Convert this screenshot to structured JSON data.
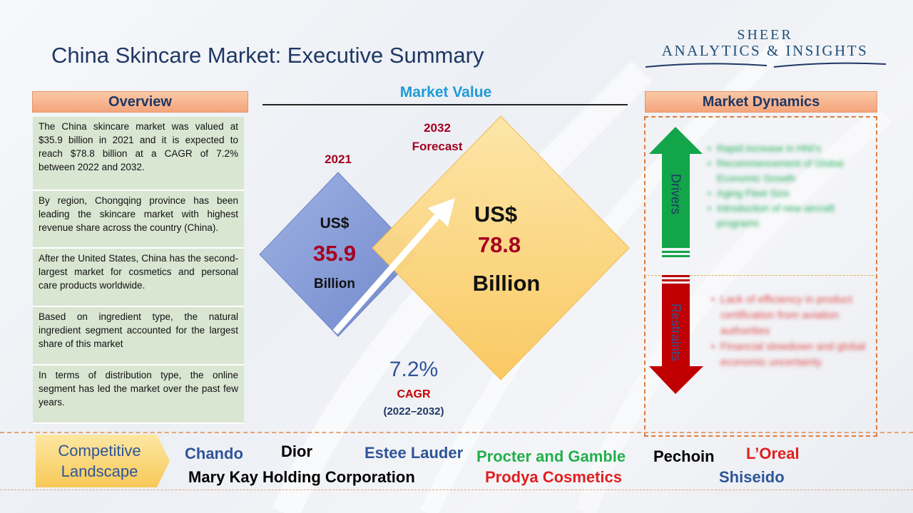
{
  "title": "China Skincare Market: Executive Summary",
  "logo": {
    "line1": "SHEER",
    "line2": "ANALYTICS & INSIGHTS"
  },
  "overview": {
    "heading": "Overview",
    "items": [
      "The China skincare market was valued at $35.9 billion in 2021 and it is expected to reach $78.8 billion at a CAGR of 7.2% between 2022 and 2032.",
      "By region, Chongqing province has been leading the skincare market with highest revenue share across the country (China).",
      "After the United States, China has the second-largest market for cosmetics and personal care products worldwide.",
      "Based on ingredient type, the natural ingredient segment accounted for the largest share of this market",
      "In terms of distribution type, the online segment has led the market over the past few years."
    ]
  },
  "market_value": {
    "heading": "Market Value",
    "base": {
      "year": "2021",
      "currency": "US$",
      "value": "35.9",
      "unit": "Billion"
    },
    "forecast": {
      "year": "2032",
      "label": "Forecast",
      "currency": "US$",
      "value": "78.8",
      "unit": "Billion"
    },
    "cagr": {
      "value": "7.2%",
      "label": "CAGR",
      "period": "(2022–2032)"
    }
  },
  "market_dynamics": {
    "heading": "Market Dynamics",
    "drivers_label": "Drivers",
    "restraints_label": "Restraints",
    "drivers": [
      "Rapid increase in HNI's",
      "Recommencement of Global Economic Growth",
      "Aging Fleet Size",
      "Introduction of new aircraft programs"
    ],
    "restraints": [
      "Lack of efficiency in product certification from aviation authorities",
      "Financial slowdown and global economic uncertainty"
    ]
  },
  "competitive": {
    "label_line1": "Competitive",
    "label_line2": "Landscape",
    "companies": [
      {
        "name": "Chando",
        "color": "#2f5597"
      },
      {
        "name": "Dior",
        "color": "#000000"
      },
      {
        "name": "Estee Lauder",
        "color": "#2f5597"
      },
      {
        "name": "Procter and Gamble",
        "color": "#22b04b"
      },
      {
        "name": "Pechoin",
        "color": "#000000"
      },
      {
        "name": "L’Oreal",
        "color": "#e0201f"
      },
      {
        "name": "Mary Kay Holding Corporation",
        "color": "#000000"
      },
      {
        "name": "Prodya Cosmetics",
        "color": "#e0201f"
      },
      {
        "name": "Shiseido",
        "color": "#2f5597"
      }
    ]
  },
  "colors": {
    "accent_blue": "#1f3864",
    "value_red": "#a50021",
    "driver_green": "#12a24a",
    "restraint_red": "#c00000"
  }
}
